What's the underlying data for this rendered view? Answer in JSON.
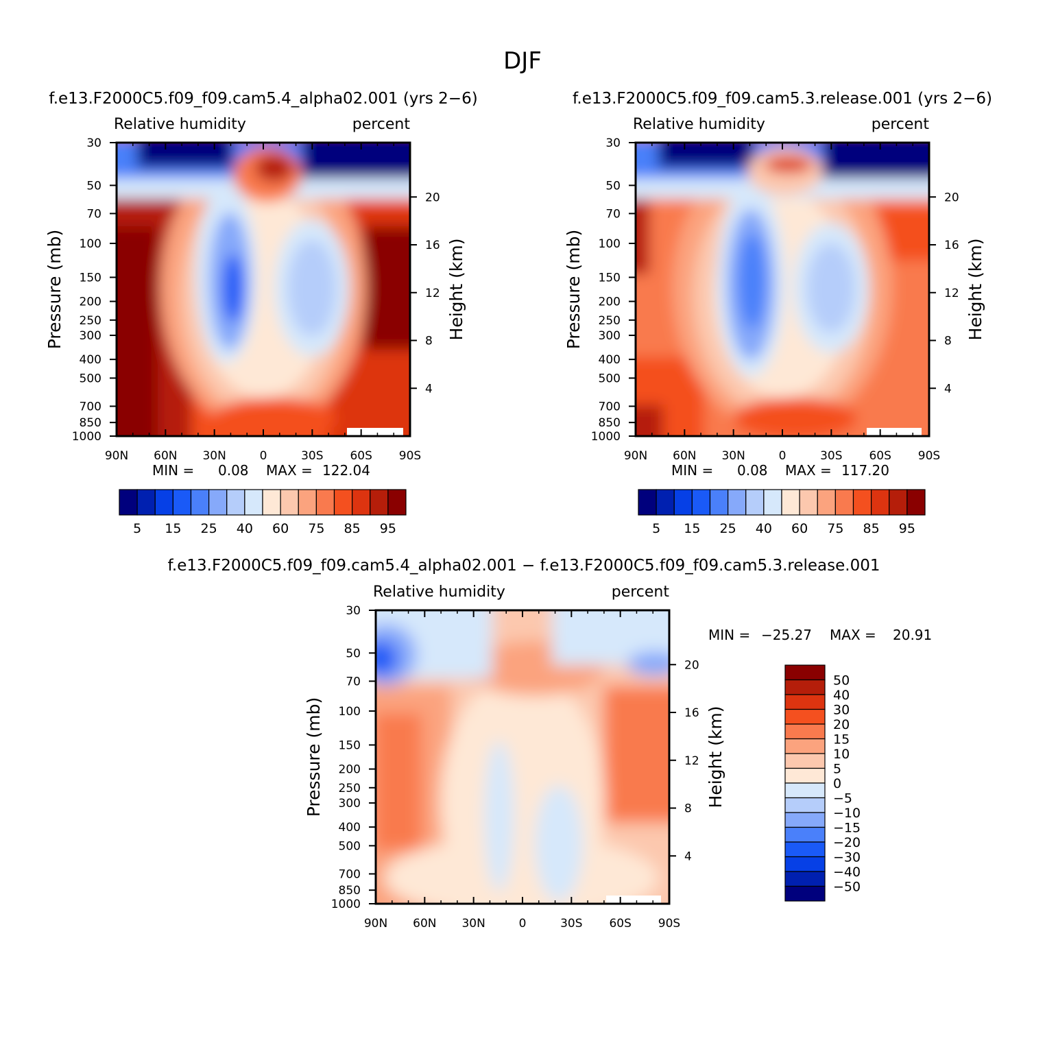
{
  "page_title": "DJF",
  "colors": {
    "abs_palette": [
      "#00007d",
      "#0020b0",
      "#0640e6",
      "#1a5af7",
      "#4a80fa",
      "#86a9fa",
      "#b5cdfa",
      "#d6e8fb",
      "#fee8d6",
      "#fcc8ae",
      "#fba37e",
      "#f97a4e",
      "#f4501f",
      "#dd3410",
      "#b51e0a",
      "#8a0000"
    ],
    "diff_palette": [
      "#00007d",
      "#0020b0",
      "#0640e6",
      "#1a5af7",
      "#4a80fa",
      "#86a9fa",
      "#b5cdfa",
      "#d6e8fb",
      "#fee8d6",
      "#fcc8ae",
      "#fba37e",
      "#f97a4e",
      "#f4501f",
      "#dd3410",
      "#b51e0a",
      "#8a0000"
    ]
  },
  "chart_data": [
    {
      "id": "panel1",
      "type": "heatmap",
      "title": "f.e13.F2000C5.f09_f09.cam5.4_alpha02.001 (yrs 2−6)",
      "left_label": "Relative humidity",
      "right_label": "percent",
      "ylabel": "Pressure (mb)",
      "y2label": "Height (km)",
      "x_ticks": [
        "90N",
        "60N",
        "30N",
        "0",
        "30S",
        "60S",
        "90S"
      ],
      "y_ticks": [
        "30",
        "50",
        "70",
        "100",
        "150",
        "200",
        "250",
        "300",
        "400",
        "500",
        "700",
        "850",
        "1000"
      ],
      "y2_ticks": [
        "20",
        "16",
        "12",
        "8",
        "4"
      ],
      "min_label": "MIN =",
      "min_value": "0.08",
      "max_label": "MAX =",
      "max_value": "122.04",
      "colorbar_labels": [
        "5",
        "15",
        "25",
        "40",
        "60",
        "75",
        "85",
        "95"
      ],
      "colorbar_levels": [
        5,
        10,
        15,
        20,
        25,
        30,
        40,
        50,
        60,
        70,
        75,
        80,
        85,
        90,
        95
      ]
    },
    {
      "id": "panel2",
      "type": "heatmap",
      "title": "f.e13.F2000C5.f09_f09.cam5.3.release.001 (yrs 2−6)",
      "left_label": "Relative humidity",
      "right_label": "percent",
      "ylabel": "Pressure (mb)",
      "y2label": "Height (km)",
      "x_ticks": [
        "90N",
        "60N",
        "30N",
        "0",
        "30S",
        "60S",
        "90S"
      ],
      "y_ticks": [
        "30",
        "50",
        "70",
        "100",
        "150",
        "200",
        "250",
        "300",
        "400",
        "500",
        "700",
        "850",
        "1000"
      ],
      "y2_ticks": [
        "20",
        "16",
        "12",
        "8",
        "4"
      ],
      "min_label": "MIN =",
      "min_value": "0.08",
      "max_label": "MAX =",
      "max_value": "117.20",
      "colorbar_labels": [
        "5",
        "15",
        "25",
        "40",
        "60",
        "75",
        "85",
        "95"
      ],
      "colorbar_levels": [
        5,
        10,
        15,
        20,
        25,
        30,
        40,
        50,
        60,
        70,
        75,
        80,
        85,
        90,
        95
      ]
    },
    {
      "id": "panel3",
      "type": "heatmap",
      "title": "f.e13.F2000C5.f09_f09.cam5.4_alpha02.001 − f.e13.F2000C5.f09_f09.cam5.3.release.001",
      "left_label": "Relative humidity",
      "right_label": "percent",
      "ylabel": "Pressure (mb)",
      "y2label": "Height (km)",
      "x_ticks": [
        "90N",
        "60N",
        "30N",
        "0",
        "30S",
        "60S",
        "90S"
      ],
      "y_ticks": [
        "30",
        "50",
        "70",
        "100",
        "150",
        "200",
        "250",
        "300",
        "400",
        "500",
        "700",
        "850",
        "1000"
      ],
      "y2_ticks": [
        "20",
        "16",
        "12",
        "8",
        "4"
      ],
      "min_label": "MIN =",
      "min_value": "−25.27",
      "max_label": "MAX =",
      "max_value": "20.91",
      "colorbar_labels": [
        "50",
        "40",
        "30",
        "20",
        "15",
        "10",
        "5",
        "0",
        "−5",
        "−10",
        "−15",
        "−20",
        "−30",
        "−40",
        "−50"
      ]
    }
  ]
}
